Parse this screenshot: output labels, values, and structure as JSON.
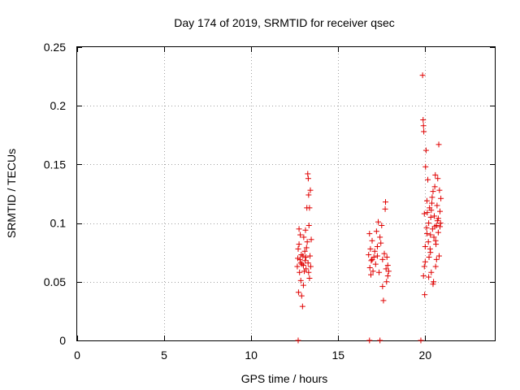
{
  "chart_data": {
    "type": "scatter",
    "title": "Day 174 of 2019, SRMTID for receiver qsec",
    "xlabel": "GPS time / hours",
    "ylabel": "SRMTID / TECUs",
    "xlim": [
      0,
      24
    ],
    "ylim": [
      0,
      0.25
    ],
    "xticks": [
      0,
      5,
      10,
      15,
      20
    ],
    "yticks": [
      0,
      0.05,
      0.1,
      0.15,
      0.2,
      0.25
    ],
    "xtick_labels": [
      "0",
      "5",
      "10",
      "15",
      "20"
    ],
    "ytick_labels": [
      "0",
      "0.05",
      "0.1",
      "0.15",
      "0.2",
      "0.25"
    ],
    "grid": true,
    "marker": "+",
    "color": "#e00000",
    "series": [
      {
        "name": "SRMTID",
        "points": [
          [
            12.65,
            0.063
          ],
          [
            12.7,
            0.078
          ],
          [
            12.72,
            0.041
          ],
          [
            12.75,
            0.082
          ],
          [
            12.78,
            0.058
          ],
          [
            12.8,
            0.069
          ],
          [
            12.82,
            0.09
          ],
          [
            12.85,
            0.051
          ],
          [
            12.88,
            0.073
          ],
          [
            12.9,
            0.038
          ],
          [
            12.92,
            0.065
          ],
          [
            12.95,
            0.029
          ],
          [
            12.97,
            0.072
          ],
          [
            13.0,
            0.047
          ],
          [
            13.02,
            0.088
          ],
          [
            13.05,
            0.059
          ],
          [
            13.08,
            0.076
          ],
          [
            13.1,
            0.068
          ],
          [
            13.12,
            0.094
          ],
          [
            13.15,
            0.061
          ],
          [
            13.18,
            0.079
          ],
          [
            13.2,
            0.113
          ],
          [
            13.22,
            0.084
          ],
          [
            13.25,
            0.142
          ],
          [
            13.27,
            0.066
          ],
          [
            13.3,
            0.124
          ],
          [
            13.32,
            0.098
          ],
          [
            13.35,
            0.113
          ],
          [
            13.38,
            0.072
          ],
          [
            13.4,
            0.128
          ],
          [
            13.42,
            0.063
          ],
          [
            13.45,
            0.086
          ],
          [
            12.68,
            0.07
          ],
          [
            12.85,
            0.066
          ],
          [
            13.0,
            0.064
          ],
          [
            13.15,
            0.071
          ],
          [
            13.3,
            0.058
          ],
          [
            13.28,
            0.138
          ],
          [
            13.35,
            0.053
          ],
          [
            12.75,
            0.095
          ],
          [
            16.75,
            0.073
          ],
          [
            16.8,
            0.091
          ],
          [
            16.82,
            0.062
          ],
          [
            16.85,
            0.078
          ],
          [
            16.88,
            0.056
          ],
          [
            16.9,
            0.068
          ],
          [
            16.95,
            0.085
          ],
          [
            17.0,
            0.059
          ],
          [
            17.05,
            0.071
          ],
          [
            17.1,
            0.076
          ],
          [
            17.15,
            0.065
          ],
          [
            17.2,
            0.093
          ],
          [
            17.25,
            0.08
          ],
          [
            17.3,
            0.101
          ],
          [
            17.35,
            0.058
          ],
          [
            17.4,
            0.088
          ],
          [
            17.45,
            0.083
          ],
          [
            17.5,
            0.098
          ],
          [
            17.55,
            0.046
          ],
          [
            17.6,
            0.034
          ],
          [
            17.65,
            0.074
          ],
          [
            17.7,
            0.112
          ],
          [
            17.72,
            0.118
          ],
          [
            17.75,
            0.061
          ],
          [
            17.78,
            0.05
          ],
          [
            17.8,
            0.071
          ],
          [
            17.85,
            0.055
          ],
          [
            17.9,
            0.059
          ],
          [
            16.95,
            0.069
          ],
          [
            17.25,
            0.072
          ],
          [
            17.55,
            0.069
          ],
          [
            17.85,
            0.064
          ],
          [
            19.85,
            0.226
          ],
          [
            19.88,
            0.188
          ],
          [
            19.9,
            0.183
          ],
          [
            19.92,
            0.178
          ],
          [
            19.95,
            0.063
          ],
          [
            19.97,
            0.039
          ],
          [
            20.0,
            0.08
          ],
          [
            20.02,
            0.148
          ],
          [
            20.05,
            0.162
          ],
          [
            20.08,
            0.096
          ],
          [
            20.1,
            0.119
          ],
          [
            20.12,
            0.109
          ],
          [
            20.15,
            0.137
          ],
          [
            20.18,
            0.084
          ],
          [
            20.2,
            0.1
          ],
          [
            20.22,
            0.071
          ],
          [
            20.25,
            0.113
          ],
          [
            20.28,
            0.078
          ],
          [
            20.3,
            0.09
          ],
          [
            20.32,
            0.105
          ],
          [
            20.35,
            0.058
          ],
          [
            20.38,
            0.117
          ],
          [
            20.4,
            0.122
          ],
          [
            20.42,
            0.095
          ],
          [
            20.45,
            0.127
          ],
          [
            20.48,
            0.05
          ],
          [
            20.5,
            0.088
          ],
          [
            20.52,
            0.106
          ],
          [
            20.55,
            0.131
          ],
          [
            20.58,
            0.141
          ],
          [
            20.6,
            0.063
          ],
          [
            20.62,
            0.082
          ],
          [
            20.65,
            0.098
          ],
          [
            20.68,
            0.115
          ],
          [
            20.7,
            0.102
          ],
          [
            20.72,
            0.138
          ],
          [
            20.75,
            0.092
          ],
          [
            20.78,
            0.167
          ],
          [
            20.8,
            0.072
          ],
          [
            20.82,
            0.128
          ],
          [
            20.85,
            0.11
          ],
          [
            20.88,
            0.1
          ],
          [
            20.9,
            0.121
          ],
          [
            19.95,
            0.108
          ],
          [
            20.1,
            0.091
          ],
          [
            20.35,
            0.111
          ],
          [
            20.55,
            0.097
          ],
          [
            20.75,
            0.104
          ],
          [
            20.0,
            0.067
          ],
          [
            20.2,
            0.054
          ],
          [
            20.45,
            0.048
          ],
          [
            20.65,
            0.069
          ],
          [
            20.85,
            0.097
          ],
          [
            19.9,
            0.055
          ],
          [
            20.3,
            0.075
          ],
          [
            20.6,
            0.085
          ],
          [
            12.7,
            0.0
          ],
          [
            16.8,
            0.0
          ],
          [
            17.4,
            0.0
          ],
          [
            19.75,
            0.0
          ]
        ]
      }
    ]
  }
}
